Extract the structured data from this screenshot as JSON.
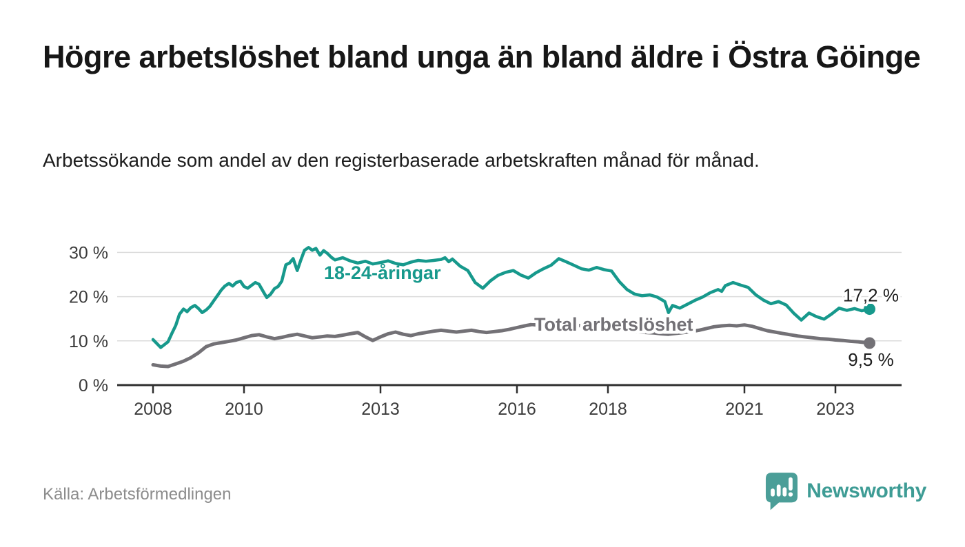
{
  "chart_data": {
    "type": "line",
    "title": "Högre arbetslöshet bland unga än bland äldre i Östra Göinge",
    "subtitle": "Arbetssökande som andel av den registerbaserade arbetskraften månad för månad.",
    "source": "Källa: Arbetsförmedlingen",
    "grid": "horizontal",
    "x_axis": {
      "tick_years": [
        2008,
        2010,
        2013,
        2016,
        2018,
        2021,
        2023
      ],
      "range": [
        2007.2,
        2024.5
      ]
    },
    "y_axis": {
      "tick_values": [
        0,
        10,
        20,
        30
      ],
      "suffix": " %",
      "range": [
        0,
        32.5
      ]
    },
    "colors": {
      "grid": "#dbdbdb",
      "axis": "#2e2e2e",
      "tick_text": "#3b3b3b",
      "value_label": "#1d1d1d"
    },
    "series": [
      {
        "id": "total",
        "name": "Total arbetslöshet",
        "color": "#737176",
        "end_label": "9,5 %",
        "end_value": 9.5,
        "points": [
          [
            2008.0,
            4.6
          ],
          [
            2008.17,
            4.3
          ],
          [
            2008.33,
            4.2
          ],
          [
            2008.5,
            4.8
          ],
          [
            2008.67,
            5.4
          ],
          [
            2008.83,
            6.2
          ],
          [
            2009.0,
            7.3
          ],
          [
            2009.17,
            8.7
          ],
          [
            2009.33,
            9.3
          ],
          [
            2009.5,
            9.6
          ],
          [
            2009.67,
            9.9
          ],
          [
            2009.83,
            10.2
          ],
          [
            2010.0,
            10.7
          ],
          [
            2010.17,
            11.2
          ],
          [
            2010.33,
            11.4
          ],
          [
            2010.5,
            10.9
          ],
          [
            2010.67,
            10.5
          ],
          [
            2010.83,
            10.8
          ],
          [
            2011.0,
            11.2
          ],
          [
            2011.17,
            11.5
          ],
          [
            2011.33,
            11.1
          ],
          [
            2011.5,
            10.7
          ],
          [
            2011.67,
            10.9
          ],
          [
            2011.83,
            11.1
          ],
          [
            2012.0,
            11.0
          ],
          [
            2012.17,
            11.3
          ],
          [
            2012.33,
            11.6
          ],
          [
            2012.5,
            11.9
          ],
          [
            2012.67,
            10.9
          ],
          [
            2012.83,
            10.1
          ],
          [
            2013.0,
            10.9
          ],
          [
            2013.17,
            11.6
          ],
          [
            2013.33,
            12.0
          ],
          [
            2013.5,
            11.5
          ],
          [
            2013.67,
            11.2
          ],
          [
            2013.83,
            11.6
          ],
          [
            2014.0,
            11.9
          ],
          [
            2014.17,
            12.2
          ],
          [
            2014.33,
            12.4
          ],
          [
            2014.5,
            12.2
          ],
          [
            2014.67,
            12.0
          ],
          [
            2014.83,
            12.2
          ],
          [
            2015.0,
            12.4
          ],
          [
            2015.17,
            12.1
          ],
          [
            2015.33,
            11.9
          ],
          [
            2015.5,
            12.1
          ],
          [
            2015.67,
            12.3
          ],
          [
            2015.83,
            12.6
          ],
          [
            2016.0,
            13.0
          ],
          [
            2016.17,
            13.4
          ],
          [
            2016.33,
            13.7
          ],
          [
            2016.5,
            13.5
          ],
          [
            2016.67,
            13.6
          ],
          [
            2016.83,
            13.8
          ],
          [
            2017.0,
            14.0
          ],
          [
            2017.17,
            13.8
          ],
          [
            2017.33,
            13.5
          ],
          [
            2017.5,
            13.3
          ],
          [
            2017.67,
            13.1
          ],
          [
            2017.83,
            12.9
          ],
          [
            2018.0,
            12.7
          ],
          [
            2018.17,
            12.5
          ],
          [
            2018.33,
            12.3
          ],
          [
            2018.5,
            12.2
          ],
          [
            2018.67,
            12.0
          ],
          [
            2018.83,
            11.9
          ],
          [
            2019.0,
            11.8
          ],
          [
            2019.17,
            11.6
          ],
          [
            2019.33,
            11.5
          ],
          [
            2019.5,
            11.7
          ],
          [
            2019.67,
            11.9
          ],
          [
            2019.83,
            12.1
          ],
          [
            2020.0,
            12.4
          ],
          [
            2020.17,
            12.8
          ],
          [
            2020.33,
            13.2
          ],
          [
            2020.5,
            13.4
          ],
          [
            2020.67,
            13.5
          ],
          [
            2020.83,
            13.4
          ],
          [
            2021.0,
            13.6
          ],
          [
            2021.17,
            13.3
          ],
          [
            2021.33,
            12.8
          ],
          [
            2021.5,
            12.3
          ],
          [
            2021.67,
            12.0
          ],
          [
            2021.83,
            11.7
          ],
          [
            2022.0,
            11.4
          ],
          [
            2022.17,
            11.1
          ],
          [
            2022.33,
            10.9
          ],
          [
            2022.5,
            10.7
          ],
          [
            2022.67,
            10.5
          ],
          [
            2022.83,
            10.4
          ],
          [
            2023.0,
            10.2
          ],
          [
            2023.17,
            10.1
          ],
          [
            2023.33,
            9.9
          ],
          [
            2023.5,
            9.8
          ],
          [
            2023.67,
            9.6
          ],
          [
            2023.75,
            9.5
          ]
        ]
      },
      {
        "id": "youth",
        "name": "18-24-åringar",
        "color": "#17998c",
        "end_label": "17,2 %",
        "end_value": 17.2,
        "points": [
          [
            2008.0,
            10.3
          ],
          [
            2008.17,
            8.5
          ],
          [
            2008.33,
            9.8
          ],
          [
            2008.42,
            11.8
          ],
          [
            2008.5,
            13.5
          ],
          [
            2008.58,
            16.0
          ],
          [
            2008.67,
            17.2
          ],
          [
            2008.75,
            16.6
          ],
          [
            2008.83,
            17.5
          ],
          [
            2008.92,
            18.0
          ],
          [
            2009.0,
            17.3
          ],
          [
            2009.08,
            16.4
          ],
          [
            2009.17,
            17.0
          ],
          [
            2009.25,
            17.8
          ],
          [
            2009.33,
            19.0
          ],
          [
            2009.42,
            20.3
          ],
          [
            2009.5,
            21.5
          ],
          [
            2009.58,
            22.4
          ],
          [
            2009.67,
            23.0
          ],
          [
            2009.75,
            22.4
          ],
          [
            2009.83,
            23.2
          ],
          [
            2009.92,
            23.5
          ],
          [
            2010.0,
            22.3
          ],
          [
            2010.08,
            21.9
          ],
          [
            2010.17,
            22.6
          ],
          [
            2010.25,
            23.2
          ],
          [
            2010.33,
            22.8
          ],
          [
            2010.42,
            21.2
          ],
          [
            2010.5,
            19.8
          ],
          [
            2010.58,
            20.5
          ],
          [
            2010.67,
            21.8
          ],
          [
            2010.75,
            22.3
          ],
          [
            2010.83,
            23.5
          ],
          [
            2010.92,
            27.2
          ],
          [
            2011.0,
            27.6
          ],
          [
            2011.08,
            28.6
          ],
          [
            2011.17,
            25.9
          ],
          [
            2011.25,
            28.3
          ],
          [
            2011.33,
            30.5
          ],
          [
            2011.42,
            31.1
          ],
          [
            2011.5,
            30.5
          ],
          [
            2011.58,
            30.9
          ],
          [
            2011.67,
            29.4
          ],
          [
            2011.75,
            30.4
          ],
          [
            2011.83,
            29.8
          ],
          [
            2011.92,
            28.9
          ],
          [
            2012.0,
            28.3
          ],
          [
            2012.17,
            28.8
          ],
          [
            2012.33,
            28.1
          ],
          [
            2012.5,
            27.6
          ],
          [
            2012.67,
            28.0
          ],
          [
            2012.83,
            27.4
          ],
          [
            2013.0,
            27.7
          ],
          [
            2013.17,
            28.1
          ],
          [
            2013.33,
            27.5
          ],
          [
            2013.5,
            27.2
          ],
          [
            2013.67,
            27.8
          ],
          [
            2013.83,
            28.2
          ],
          [
            2014.0,
            28.0
          ],
          [
            2014.17,
            28.2
          ],
          [
            2014.33,
            28.4
          ],
          [
            2014.42,
            28.8
          ],
          [
            2014.5,
            27.9
          ],
          [
            2014.58,
            28.5
          ],
          [
            2014.75,
            26.9
          ],
          [
            2014.92,
            25.9
          ],
          [
            2015.08,
            23.2
          ],
          [
            2015.25,
            21.9
          ],
          [
            2015.42,
            23.6
          ],
          [
            2015.58,
            24.8
          ],
          [
            2015.75,
            25.5
          ],
          [
            2015.92,
            25.9
          ],
          [
            2016.08,
            24.9
          ],
          [
            2016.25,
            24.2
          ],
          [
            2016.42,
            25.4
          ],
          [
            2016.58,
            26.3
          ],
          [
            2016.75,
            27.1
          ],
          [
            2016.92,
            28.6
          ],
          [
            2017.08,
            27.9
          ],
          [
            2017.25,
            27.1
          ],
          [
            2017.42,
            26.3
          ],
          [
            2017.58,
            26.0
          ],
          [
            2017.75,
            26.6
          ],
          [
            2017.92,
            26.1
          ],
          [
            2018.08,
            25.8
          ],
          [
            2018.25,
            23.4
          ],
          [
            2018.42,
            21.6
          ],
          [
            2018.58,
            20.6
          ],
          [
            2018.75,
            20.2
          ],
          [
            2018.92,
            20.4
          ],
          [
            2019.08,
            19.9
          ],
          [
            2019.25,
            18.9
          ],
          [
            2019.33,
            16.4
          ],
          [
            2019.42,
            18.0
          ],
          [
            2019.58,
            17.4
          ],
          [
            2019.75,
            18.3
          ],
          [
            2019.92,
            19.2
          ],
          [
            2020.08,
            19.9
          ],
          [
            2020.25,
            20.9
          ],
          [
            2020.42,
            21.6
          ],
          [
            2020.5,
            21.2
          ],
          [
            2020.58,
            22.5
          ],
          [
            2020.75,
            23.2
          ],
          [
            2020.92,
            22.6
          ],
          [
            2021.08,
            22.1
          ],
          [
            2021.25,
            20.4
          ],
          [
            2021.42,
            19.2
          ],
          [
            2021.58,
            18.4
          ],
          [
            2021.75,
            18.9
          ],
          [
            2021.92,
            18.1
          ],
          [
            2022.08,
            16.3
          ],
          [
            2022.25,
            14.7
          ],
          [
            2022.42,
            16.3
          ],
          [
            2022.58,
            15.5
          ],
          [
            2022.75,
            14.9
          ],
          [
            2022.92,
            16.1
          ],
          [
            2023.08,
            17.4
          ],
          [
            2023.25,
            16.9
          ],
          [
            2023.42,
            17.3
          ],
          [
            2023.58,
            16.8
          ],
          [
            2023.75,
            17.2
          ]
        ]
      }
    ]
  },
  "branding": {
    "name": "Newsworthy",
    "logo_icon": "newsworthy-speech-bubble-chart-icon",
    "color": "#3e9c95"
  }
}
